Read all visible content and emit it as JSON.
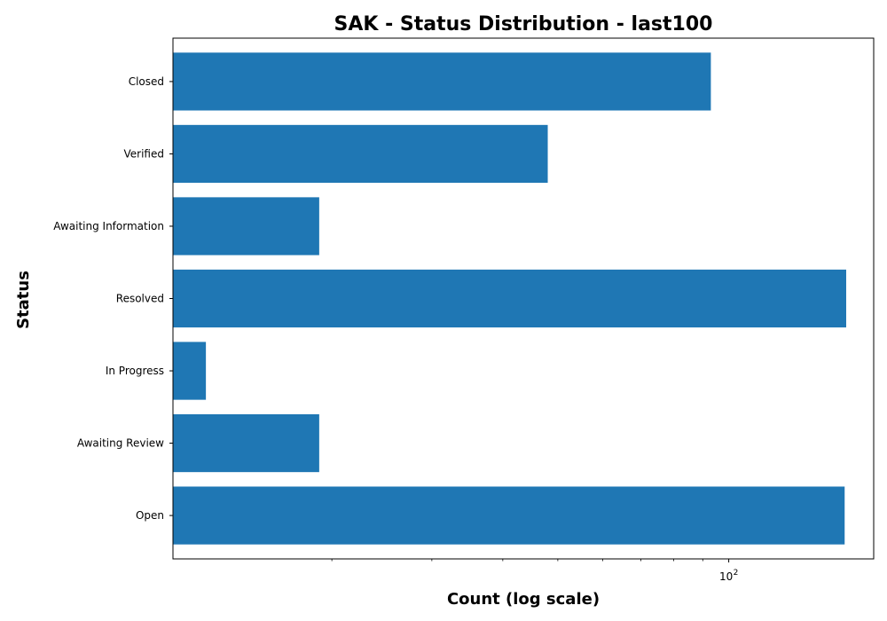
{
  "chart_data": {
    "type": "bar",
    "orientation": "horizontal",
    "title": "SAK - Status Distribution - last100",
    "xlabel": "Count (log scale)",
    "ylabel": "Status",
    "xscale": "log",
    "xlim": [
      10.5,
      180
    ],
    "xticks_major": [
      {
        "value": 100,
        "base": "10",
        "exponent": "2"
      }
    ],
    "xticks_minor": [
      20,
      30,
      40,
      50,
      60,
      70,
      80,
      90
    ],
    "categories": [
      "Open",
      "Awaiting Review",
      "In Progress",
      "Resolved",
      "Awaiting Information",
      "Verified",
      "Closed"
    ],
    "values": [
      160,
      19,
      12,
      161,
      19,
      48,
      93
    ],
    "bar_color": "#1f77b4",
    "grid": false,
    "legend": false
  }
}
